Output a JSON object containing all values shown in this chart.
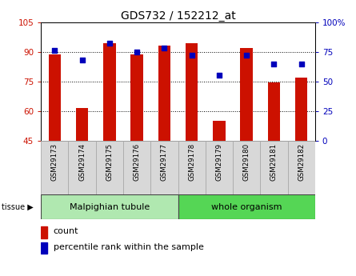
{
  "title": "GDS732 / 152212_at",
  "samples": [
    "GSM29173",
    "GSM29174",
    "GSM29175",
    "GSM29176",
    "GSM29177",
    "GSM29178",
    "GSM29179",
    "GSM29180",
    "GSM29181",
    "GSM29182"
  ],
  "counts": [
    88.5,
    61.5,
    94.5,
    88.5,
    93.0,
    94.5,
    55.0,
    92.0,
    74.5,
    77.0
  ],
  "percentiles": [
    76,
    68,
    82,
    75,
    78,
    72,
    55,
    72,
    65,
    65
  ],
  "ylim_left": [
    45,
    105
  ],
  "ylim_right": [
    0,
    100
  ],
  "yticks_left": [
    45,
    60,
    75,
    90,
    105
  ],
  "yticks_right": [
    0,
    25,
    50,
    75,
    100
  ],
  "ytick_labels_left": [
    "45",
    "60",
    "75",
    "90",
    "105"
  ],
  "ytick_labels_right": [
    "0",
    "25",
    "50",
    "75",
    "100%"
  ],
  "tissue_groups": [
    {
      "label": "Malpighian tubule",
      "start": 0,
      "end": 5,
      "color": "#b0e8b0"
    },
    {
      "label": "whole organism",
      "start": 5,
      "end": 10,
      "color": "#55d655"
    }
  ],
  "bar_color": "#cc1100",
  "dot_color": "#0000bb",
  "bar_width": 0.45,
  "grid_yticks": [
    60,
    75,
    90
  ],
  "bg_color": "#ffffff",
  "tick_fontsize": 7.5,
  "title_fontsize": 10,
  "sample_fontsize": 6.2,
  "tissue_fontsize": 8
}
